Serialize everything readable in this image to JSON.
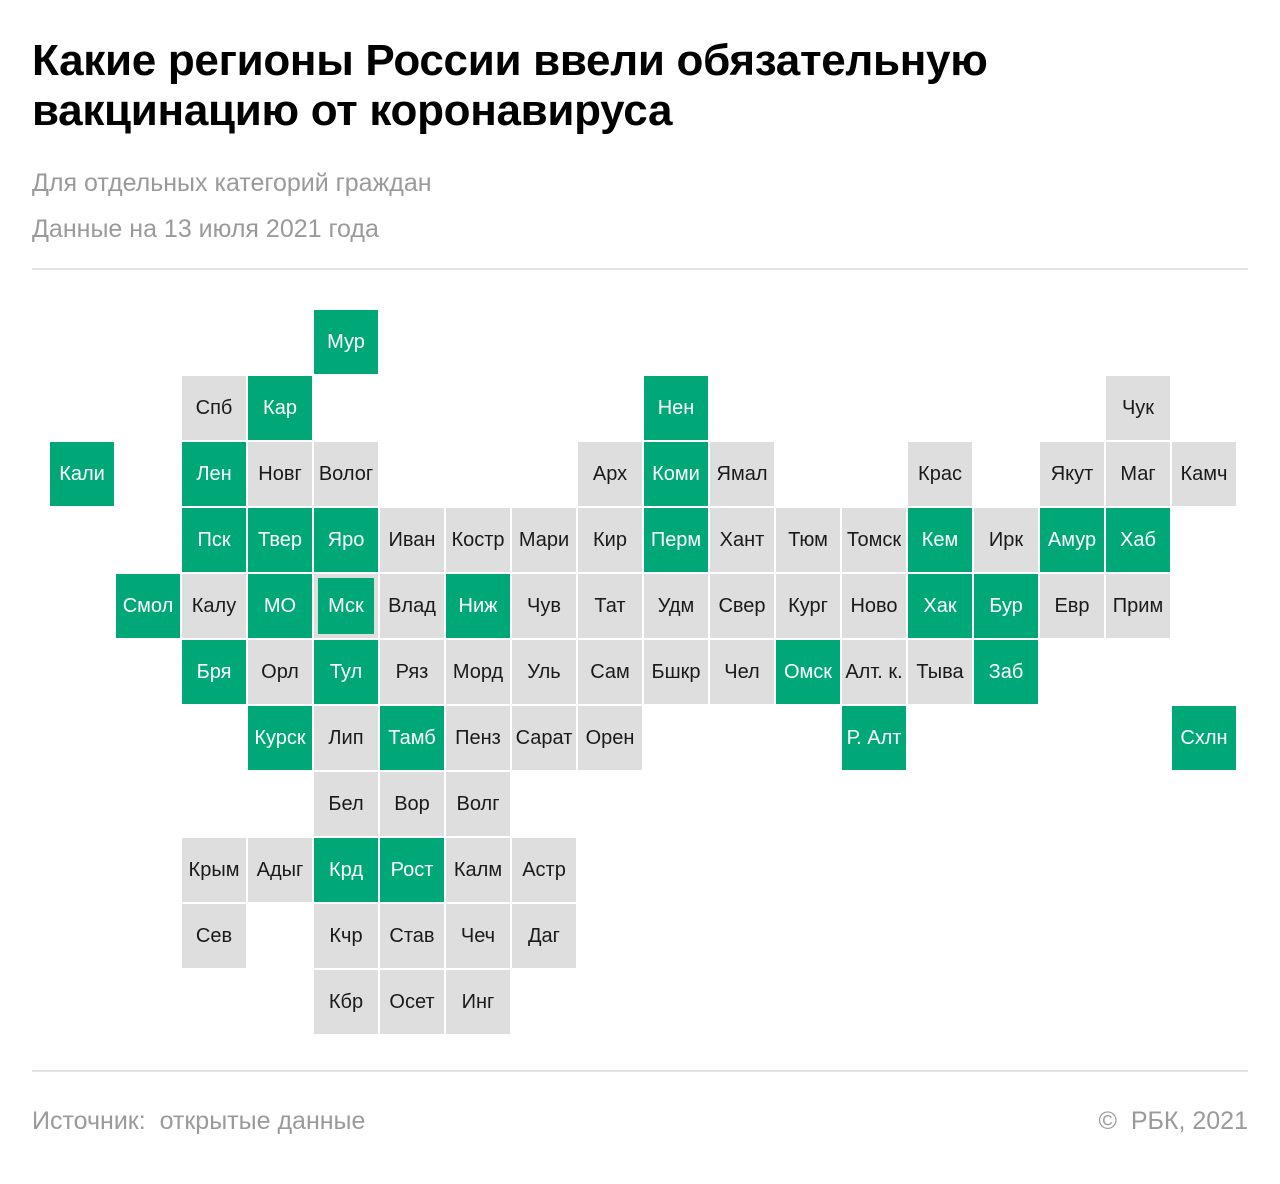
{
  "title": "Какие регионы России ввели обязательную вакцинацию от коронавируса",
  "subtitle": "Для отдельных категорий граждан",
  "date_note": "Данные на 13 июля 2021 года",
  "footer": {
    "source": "Источник:  открытые данные",
    "copyright": "©  РБК, 2021"
  },
  "colors": {
    "mandatory": "#00a878",
    "other": "#dedede"
  },
  "regions": [
    {
      "label": "Мур",
      "row": 0,
      "col": 4,
      "mandatory": true
    },
    {
      "label": "Спб",
      "row": 1,
      "col": 2,
      "mandatory": false
    },
    {
      "label": "Кар",
      "row": 1,
      "col": 3,
      "mandatory": true
    },
    {
      "label": "Нен",
      "row": 1,
      "col": 9,
      "mandatory": true
    },
    {
      "label": "Чук",
      "row": 1,
      "col": 16,
      "mandatory": false
    },
    {
      "label": "Кали",
      "row": 2,
      "col": 0,
      "mandatory": true
    },
    {
      "label": "Лен",
      "row": 2,
      "col": 2,
      "mandatory": true
    },
    {
      "label": "Новг",
      "row": 2,
      "col": 3,
      "mandatory": false
    },
    {
      "label": "Волог",
      "row": 2,
      "col": 4,
      "mandatory": false
    },
    {
      "label": "Арх",
      "row": 2,
      "col": 8,
      "mandatory": false
    },
    {
      "label": "Коми",
      "row": 2,
      "col": 9,
      "mandatory": true
    },
    {
      "label": "Ямал",
      "row": 2,
      "col": 10,
      "mandatory": false
    },
    {
      "label": "Крас",
      "row": 2,
      "col": 13,
      "mandatory": false
    },
    {
      "label": "Якут",
      "row": 2,
      "col": 15,
      "mandatory": false
    },
    {
      "label": "Маг",
      "row": 2,
      "col": 16,
      "mandatory": false
    },
    {
      "label": "Камч",
      "row": 2,
      "col": 17,
      "mandatory": false
    },
    {
      "label": "Пск",
      "row": 3,
      "col": 2,
      "mandatory": true
    },
    {
      "label": "Твер",
      "row": 3,
      "col": 3,
      "mandatory": true
    },
    {
      "label": "Яро",
      "row": 3,
      "col": 4,
      "mandatory": true
    },
    {
      "label": "Иван",
      "row": 3,
      "col": 5,
      "mandatory": false
    },
    {
      "label": "Костр",
      "row": 3,
      "col": 6,
      "mandatory": false
    },
    {
      "label": "Мари",
      "row": 3,
      "col": 7,
      "mandatory": false
    },
    {
      "label": "Кир",
      "row": 3,
      "col": 8,
      "mandatory": false
    },
    {
      "label": "Перм",
      "row": 3,
      "col": 9,
      "mandatory": true
    },
    {
      "label": "Хант",
      "row": 3,
      "col": 10,
      "mandatory": false
    },
    {
      "label": "Тюм",
      "row": 3,
      "col": 11,
      "mandatory": false
    },
    {
      "label": "Томск",
      "row": 3,
      "col": 12,
      "mandatory": false
    },
    {
      "label": "Кем",
      "row": 3,
      "col": 13,
      "mandatory": true
    },
    {
      "label": "Ирк",
      "row": 3,
      "col": 14,
      "mandatory": false
    },
    {
      "label": "Амур",
      "row": 3,
      "col": 15,
      "mandatory": true
    },
    {
      "label": "Хаб",
      "row": 3,
      "col": 16,
      "mandatory": true
    },
    {
      "label": "Смол",
      "row": 4,
      "col": 1,
      "mandatory": true
    },
    {
      "label": "Калу",
      "row": 4,
      "col": 2,
      "mandatory": false
    },
    {
      "label": "МО",
      "row": 4,
      "col": 3,
      "mandatory": true
    },
    {
      "label": "Мск",
      "row": 4,
      "col": 4,
      "mandatory": true,
      "framed": true
    },
    {
      "label": "Влад",
      "row": 4,
      "col": 5,
      "mandatory": false
    },
    {
      "label": "Ниж",
      "row": 4,
      "col": 6,
      "mandatory": true
    },
    {
      "label": "Чув",
      "row": 4,
      "col": 7,
      "mandatory": false
    },
    {
      "label": "Тат",
      "row": 4,
      "col": 8,
      "mandatory": false
    },
    {
      "label": "Удм",
      "row": 4,
      "col": 9,
      "mandatory": false
    },
    {
      "label": "Свер",
      "row": 4,
      "col": 10,
      "mandatory": false
    },
    {
      "label": "Кург",
      "row": 4,
      "col": 11,
      "mandatory": false
    },
    {
      "label": "Ново",
      "row": 4,
      "col": 12,
      "mandatory": false
    },
    {
      "label": "Хак",
      "row": 4,
      "col": 13,
      "mandatory": true
    },
    {
      "label": "Бур",
      "row": 4,
      "col": 14,
      "mandatory": true
    },
    {
      "label": "Евр",
      "row": 4,
      "col": 15,
      "mandatory": false
    },
    {
      "label": "Прим",
      "row": 4,
      "col": 16,
      "mandatory": false
    },
    {
      "label": "Бря",
      "row": 5,
      "col": 2,
      "mandatory": true
    },
    {
      "label": "Орл",
      "row": 5,
      "col": 3,
      "mandatory": false
    },
    {
      "label": "Тул",
      "row": 5,
      "col": 4,
      "mandatory": true
    },
    {
      "label": "Ряз",
      "row": 5,
      "col": 5,
      "mandatory": false
    },
    {
      "label": "Морд",
      "row": 5,
      "col": 6,
      "mandatory": false
    },
    {
      "label": "Уль",
      "row": 5,
      "col": 7,
      "mandatory": false
    },
    {
      "label": "Сам",
      "row": 5,
      "col": 8,
      "mandatory": false
    },
    {
      "label": "Бшкр",
      "row": 5,
      "col": 9,
      "mandatory": false
    },
    {
      "label": "Чел",
      "row": 5,
      "col": 10,
      "mandatory": false
    },
    {
      "label": "Омск",
      "row": 5,
      "col": 11,
      "mandatory": true
    },
    {
      "label": "Алт. к.",
      "row": 5,
      "col": 12,
      "mandatory": false
    },
    {
      "label": "Тыва",
      "row": 5,
      "col": 13,
      "mandatory": false
    },
    {
      "label": "Заб",
      "row": 5,
      "col": 14,
      "mandatory": true
    },
    {
      "label": "Курск",
      "row": 6,
      "col": 3,
      "mandatory": true
    },
    {
      "label": "Лип",
      "row": 6,
      "col": 4,
      "mandatory": false
    },
    {
      "label": "Тамб",
      "row": 6,
      "col": 5,
      "mandatory": true
    },
    {
      "label": "Пенз",
      "row": 6,
      "col": 6,
      "mandatory": false
    },
    {
      "label": "Сарат",
      "row": 6,
      "col": 7,
      "mandatory": false
    },
    {
      "label": "Орен",
      "row": 6,
      "col": 8,
      "mandatory": false
    },
    {
      "label": "Р. Алт",
      "row": 6,
      "col": 12,
      "mandatory": true
    },
    {
      "label": "Схлн",
      "row": 6,
      "col": 17,
      "mandatory": true
    },
    {
      "label": "Бел",
      "row": 7,
      "col": 4,
      "mandatory": false
    },
    {
      "label": "Вор",
      "row": 7,
      "col": 5,
      "mandatory": false
    },
    {
      "label": "Волг",
      "row": 7,
      "col": 6,
      "mandatory": false
    },
    {
      "label": "Крым",
      "row": 8,
      "col": 2,
      "mandatory": false
    },
    {
      "label": "Адыг",
      "row": 8,
      "col": 3,
      "mandatory": false
    },
    {
      "label": "Крд",
      "row": 8,
      "col": 4,
      "mandatory": true
    },
    {
      "label": "Рост",
      "row": 8,
      "col": 5,
      "mandatory": true
    },
    {
      "label": "Калм",
      "row": 8,
      "col": 6,
      "mandatory": false
    },
    {
      "label": "Астр",
      "row": 8,
      "col": 7,
      "mandatory": false
    },
    {
      "label": "Сев",
      "row": 9,
      "col": 2,
      "mandatory": false
    },
    {
      "label": "Кчр",
      "row": 9,
      "col": 4,
      "mandatory": false
    },
    {
      "label": "Став",
      "row": 9,
      "col": 5,
      "mandatory": false
    },
    {
      "label": "Чеч",
      "row": 9,
      "col": 6,
      "mandatory": false
    },
    {
      "label": "Даг",
      "row": 9,
      "col": 7,
      "mandatory": false
    },
    {
      "label": "Кбр",
      "row": 10,
      "col": 4,
      "mandatory": false
    },
    {
      "label": "Осет",
      "row": 10,
      "col": 5,
      "mandatory": false
    },
    {
      "label": "Инг",
      "row": 10,
      "col": 6,
      "mandatory": false
    }
  ]
}
